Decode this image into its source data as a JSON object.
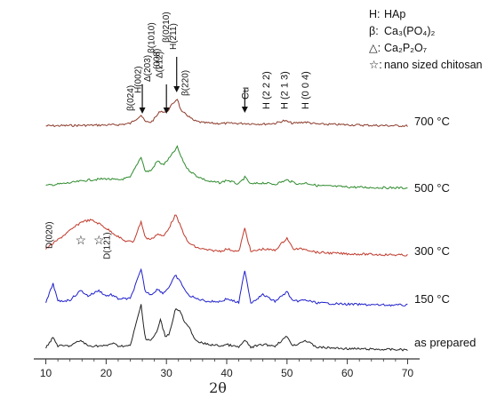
{
  "chart_data": {
    "type": "line",
    "xlabel": "2θ",
    "ylabel": "",
    "xlim": [
      8,
      72
    ],
    "xticks": [
      10,
      20,
      30,
      40,
      50,
      60,
      70
    ],
    "yticks_shown": false,
    "grid": false,
    "legend_position": "top-right",
    "legend": [
      {
        "symbol": "H:",
        "text": "HAp"
      },
      {
        "symbol": "β:",
        "text": "Ca₃(PO₄)₂"
      },
      {
        "symbol": "△:",
        "text": "Ca₂P₂O₇"
      },
      {
        "symbol": "☆:",
        "text": "nano sized chitosan"
      }
    ],
    "series": [
      {
        "name": "700 °C",
        "color": "#8b3a2a",
        "points": [
          [
            10,
            0.2
          ],
          [
            15,
            0.5
          ],
          [
            20,
            0.8
          ],
          [
            22,
            1.0
          ],
          [
            24,
            2.0
          ],
          [
            25.8,
            8.0
          ],
          [
            26.5,
            3.0
          ],
          [
            27.5,
            3.0
          ],
          [
            28.3,
            7.0
          ],
          [
            29,
            11.0
          ],
          [
            30,
            10.0
          ],
          [
            31,
            16.0
          ],
          [
            31.8,
            20.0
          ],
          [
            32.5,
            10.0
          ],
          [
            33.2,
            9.0
          ],
          [
            34.5,
            4.0
          ],
          [
            36,
            2.5
          ],
          [
            38,
            2.0
          ],
          [
            40,
            2.0
          ],
          [
            43,
            2.0
          ],
          [
            46,
            1.5
          ],
          [
            48,
            2.0
          ],
          [
            49.5,
            4.0
          ],
          [
            51,
            2.0
          ],
          [
            53,
            3.0
          ],
          [
            55,
            1.5
          ],
          [
            60,
            1.0
          ],
          [
            65,
            0.5
          ],
          [
            70,
            0.2
          ]
        ]
      },
      {
        "name": "500 °C",
        "color": "#2e8b2e",
        "points": [
          [
            10,
            2.0
          ],
          [
            14,
            4.0
          ],
          [
            17,
            6.0
          ],
          [
            20,
            7.0
          ],
          [
            22,
            6.0
          ],
          [
            24,
            8.0
          ],
          [
            25.8,
            23.0
          ],
          [
            26.5,
            12.0
          ],
          [
            27.5,
            13.0
          ],
          [
            28.5,
            20.0
          ],
          [
            29.5,
            17.0
          ],
          [
            30.5,
            22.0
          ],
          [
            31.8,
            30.0
          ],
          [
            32.5,
            22.0
          ],
          [
            33.5,
            14.0
          ],
          [
            35,
            9.0
          ],
          [
            37,
            5.0
          ],
          [
            39,
            4.0
          ],
          [
            40,
            6.0
          ],
          [
            42,
            3.0
          ],
          [
            43,
            8.0
          ],
          [
            44,
            3.0
          ],
          [
            46,
            4.0
          ],
          [
            48,
            3.0
          ],
          [
            50,
            6.0
          ],
          [
            52,
            3.0
          ],
          [
            53,
            4.0
          ],
          [
            55,
            2.0
          ],
          [
            60,
            1.0
          ],
          [
            65,
            0.5
          ],
          [
            70,
            0.3
          ]
        ]
      },
      {
        "name": "300 °C",
        "color": "#c0392b",
        "points": [
          [
            10,
            5.0
          ],
          [
            13,
            15.0
          ],
          [
            16,
            25.0
          ],
          [
            17.5,
            26.0
          ],
          [
            19,
            23.0
          ],
          [
            21,
            17.0
          ],
          [
            23,
            11.0
          ],
          [
            24.5,
            10.0
          ],
          [
            25.8,
            25.0
          ],
          [
            26.5,
            13.0
          ],
          [
            27.5,
            12.0
          ],
          [
            28.5,
            16.0
          ],
          [
            29.5,
            14.0
          ],
          [
            30.5,
            21.0
          ],
          [
            31.5,
            30.0
          ],
          [
            32.5,
            20.0
          ],
          [
            33.5,
            10.0
          ],
          [
            35,
            6.0
          ],
          [
            37,
            4.0
          ],
          [
            39,
            3.5
          ],
          [
            40,
            5.0
          ],
          [
            42,
            3.0
          ],
          [
            43,
            20.0
          ],
          [
            44,
            3.0
          ],
          [
            46,
            5.0
          ],
          [
            48,
            4.0
          ],
          [
            50,
            13.0
          ],
          [
            51,
            5.0
          ],
          [
            53,
            5.0
          ],
          [
            55,
            2.5
          ],
          [
            60,
            1.5
          ],
          [
            65,
            1.0
          ],
          [
            70,
            0.5
          ]
        ]
      },
      {
        "name": "150 °C",
        "color": "#2020cc",
        "points": [
          [
            10,
            2.0
          ],
          [
            11.2,
            16.0
          ],
          [
            12,
            3.0
          ],
          [
            14,
            4.0
          ],
          [
            15.8,
            11.0
          ],
          [
            17,
            7.0
          ],
          [
            18.8,
            11.0
          ],
          [
            20,
            7.0
          ],
          [
            20.8,
            8.0
          ],
          [
            22,
            5.0
          ],
          [
            24,
            5.0
          ],
          [
            25.8,
            26.0
          ],
          [
            26.5,
            10.0
          ],
          [
            27.5,
            8.0
          ],
          [
            28.5,
            12.0
          ],
          [
            29.5,
            9.0
          ],
          [
            30.5,
            14.0
          ],
          [
            31.5,
            22.0
          ],
          [
            32.5,
            16.0
          ],
          [
            33.5,
            8.0
          ],
          [
            35,
            5.0
          ],
          [
            37,
            3.0
          ],
          [
            39,
            3.0
          ],
          [
            40,
            5.0
          ],
          [
            42,
            2.0
          ],
          [
            43,
            26.0
          ],
          [
            44,
            2.0
          ],
          [
            46,
            8.0
          ],
          [
            48,
            3.0
          ],
          [
            50,
            10.0
          ],
          [
            51,
            3.0
          ],
          [
            53,
            4.0
          ],
          [
            55,
            2.0
          ],
          [
            60,
            1.0
          ],
          [
            65,
            0.5
          ],
          [
            70,
            0.3
          ]
        ]
      },
      {
        "name": "as prepared",
        "color": "#222222",
        "points": [
          [
            10,
            2.0
          ],
          [
            11.2,
            9.0
          ],
          [
            12,
            3.0
          ],
          [
            14,
            3.0
          ],
          [
            15.8,
            7.0
          ],
          [
            17,
            3.0
          ],
          [
            20,
            3.0
          ],
          [
            21,
            5.0
          ],
          [
            22,
            3.0
          ],
          [
            24,
            3.0
          ],
          [
            25.8,
            33.0
          ],
          [
            26.5,
            8.0
          ],
          [
            27.5,
            7.0
          ],
          [
            28.5,
            14.0
          ],
          [
            29,
            22.0
          ],
          [
            29.8,
            10.0
          ],
          [
            30.5,
            12.0
          ],
          [
            31.5,
            30.0
          ],
          [
            32.3,
            28.0
          ],
          [
            33,
            20.0
          ],
          [
            33.8,
            16.0
          ],
          [
            35,
            6.0
          ],
          [
            37,
            4.0
          ],
          [
            39,
            3.0
          ],
          [
            40,
            4.0
          ],
          [
            42,
            2.0
          ],
          [
            43,
            7.0
          ],
          [
            44,
            2.0
          ],
          [
            46,
            4.0
          ],
          [
            48,
            3.0
          ],
          [
            50,
            10.0
          ],
          [
            51,
            3.0
          ],
          [
            53,
            7.0
          ],
          [
            55,
            2.0
          ],
          [
            60,
            1.0
          ],
          [
            65,
            0.5
          ],
          [
            70,
            0.2
          ]
        ]
      }
    ],
    "annotations": {
      "top_labels": [
        {
          "text": "β(024)",
          "x": 24.5
        },
        {
          "text": "H(002)",
          "x": 25.8
        },
        {
          "text": "Δ(203)",
          "x": 27.3
        },
        {
          "text": "β(1010)",
          "x": 28.0
        },
        {
          "text": "(008)",
          "x": 28.9
        },
        {
          "text": "Δ(212)",
          "x": 29.3
        },
        {
          "text": "β(0210)",
          "x": 30.4
        },
        {
          "text": "H(211)",
          "x": 31.6
        },
        {
          "text": "β(220)",
          "x": 33.6
        }
      ],
      "right_labels": [
        {
          "text": "Cu",
          "x": 43.0
        },
        {
          "text": "H (2 2 2)",
          "x": 46.5
        },
        {
          "text": "H (2 1 3)",
          "x": 49.5
        },
        {
          "text": "H (0 0 4)",
          "x": 53.0
        }
      ],
      "arrows_x": [
        26.0,
        30.0,
        31.7,
        43.0
      ],
      "blue_labels": [
        {
          "text": "D(020)",
          "x": 11.3
        },
        {
          "text": "D(121)",
          "x": 20.9
        }
      ],
      "stars_x": [
        15.8,
        18.8
      ]
    }
  }
}
